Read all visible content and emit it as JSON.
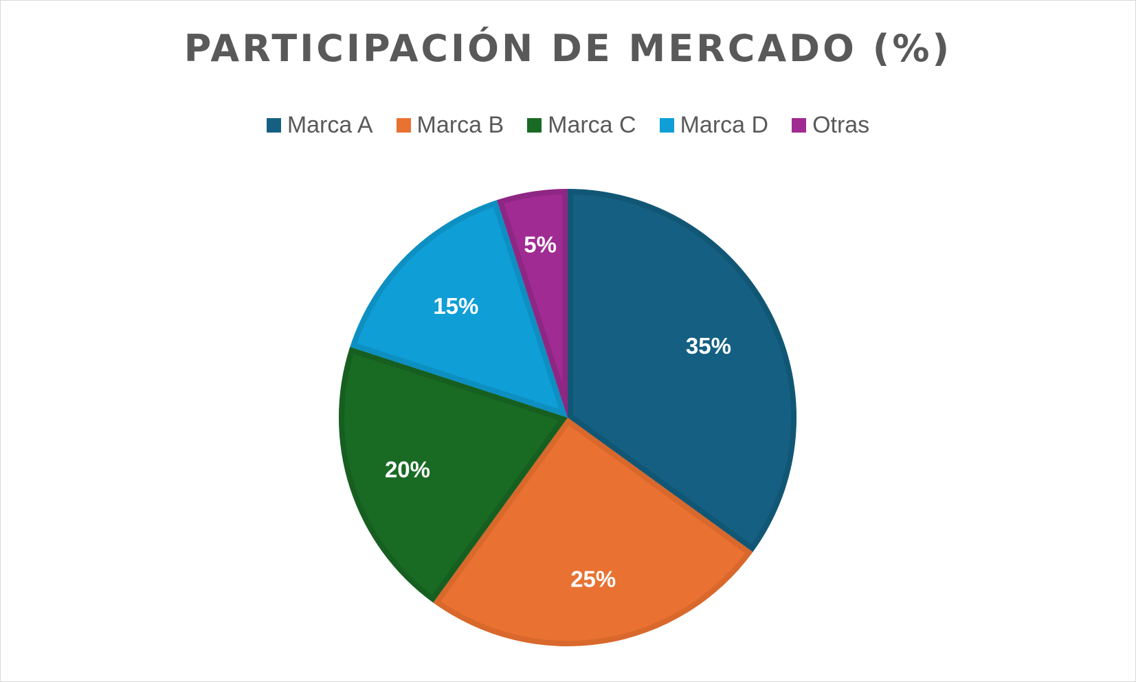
{
  "chart_data": {
    "type": "pie",
    "title": "PARTICIPACIÓN DE MERCADO (%)",
    "legend_position": "top",
    "categories": [
      "Marca A",
      "Marca B",
      "Marca C",
      "Marca D",
      "Otras"
    ],
    "values": [
      35,
      25,
      20,
      15,
      5
    ],
    "labels": [
      "35%",
      "25%",
      "20%",
      "15%",
      "5%"
    ],
    "colors": [
      "#156082",
      "#E97132",
      "#196B24",
      "#0F9ED5",
      "#A02B93"
    ],
    "border_colors": [
      "#115775",
      "#D9682C",
      "#165F20",
      "#0D8FC2",
      "#8E2683"
    ]
  }
}
